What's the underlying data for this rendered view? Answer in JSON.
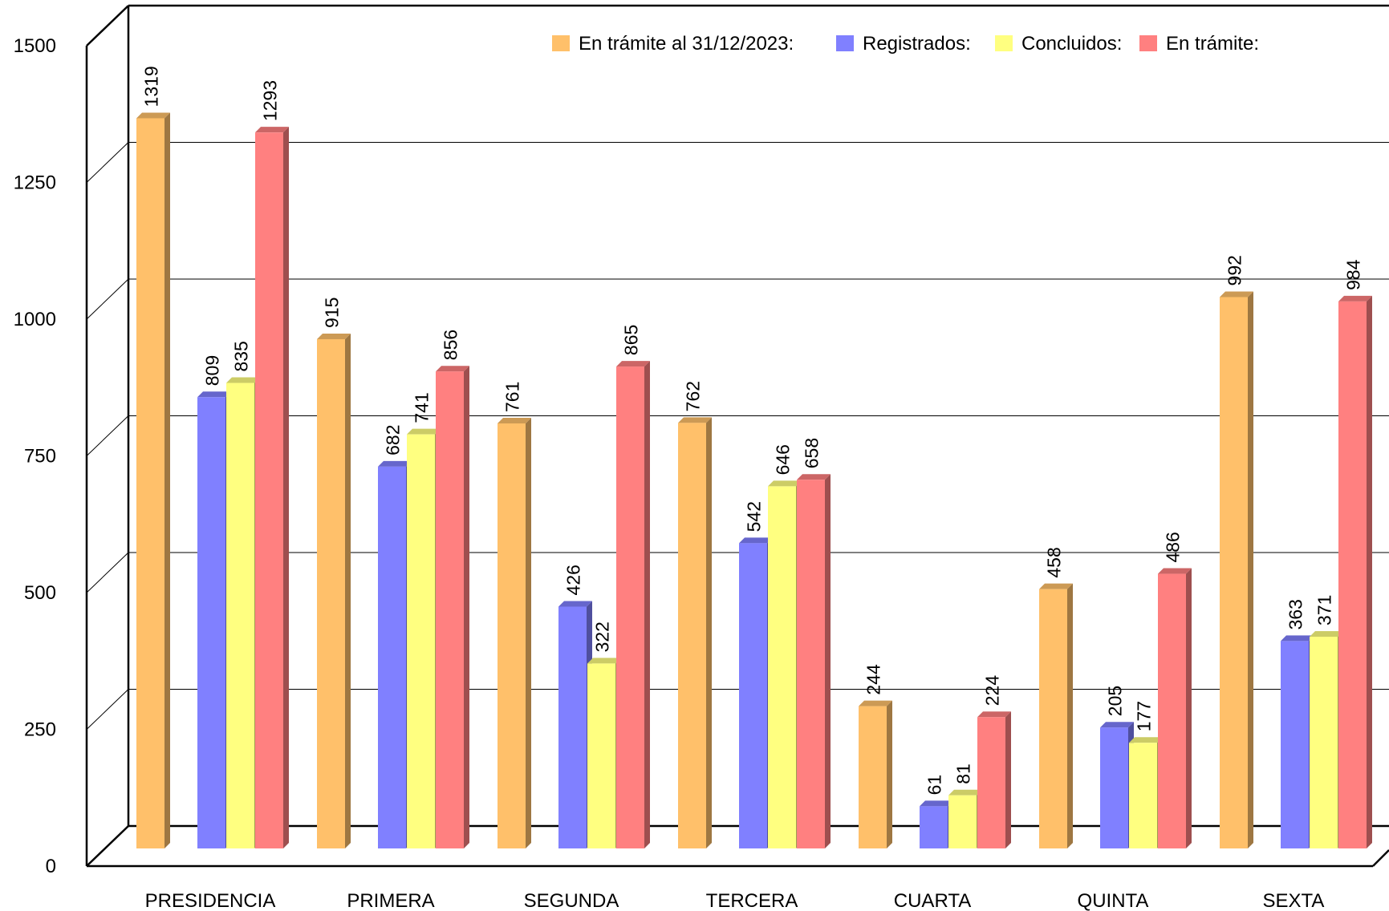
{
  "chart_data": {
    "type": "bar",
    "title": "",
    "xlabel": "",
    "ylabel": "",
    "ylim": [
      0,
      1500
    ],
    "yticks": [
      "0",
      "250",
      "500",
      "750",
      "1000",
      "1250",
      "1500"
    ],
    "grid": true,
    "legend_position": "top-right",
    "categories": [
      "PRESIDENCIA",
      "PRIMERA",
      "SEGUNDA",
      "TERCERA",
      "CUARTA",
      "QUINTA",
      "SEXTA"
    ],
    "series": [
      {
        "name": "En trámite al 31/12/2023:",
        "color": "#FFC06A",
        "values": [
          1319,
          915,
          761,
          762,
          244,
          458,
          992
        ]
      },
      {
        "name": "Registrados:",
        "color": "#8080FF",
        "values": [
          809,
          682,
          426,
          542,
          61,
          205,
          363
        ]
      },
      {
        "name": "Concluidos:",
        "color": "#FFFF80",
        "values": [
          835,
          741,
          322,
          646,
          81,
          177,
          371
        ]
      },
      {
        "name": "En trámite:",
        "color": "#FF8080",
        "values": [
          1293,
          856,
          865,
          658,
          224,
          486,
          984
        ]
      }
    ]
  }
}
